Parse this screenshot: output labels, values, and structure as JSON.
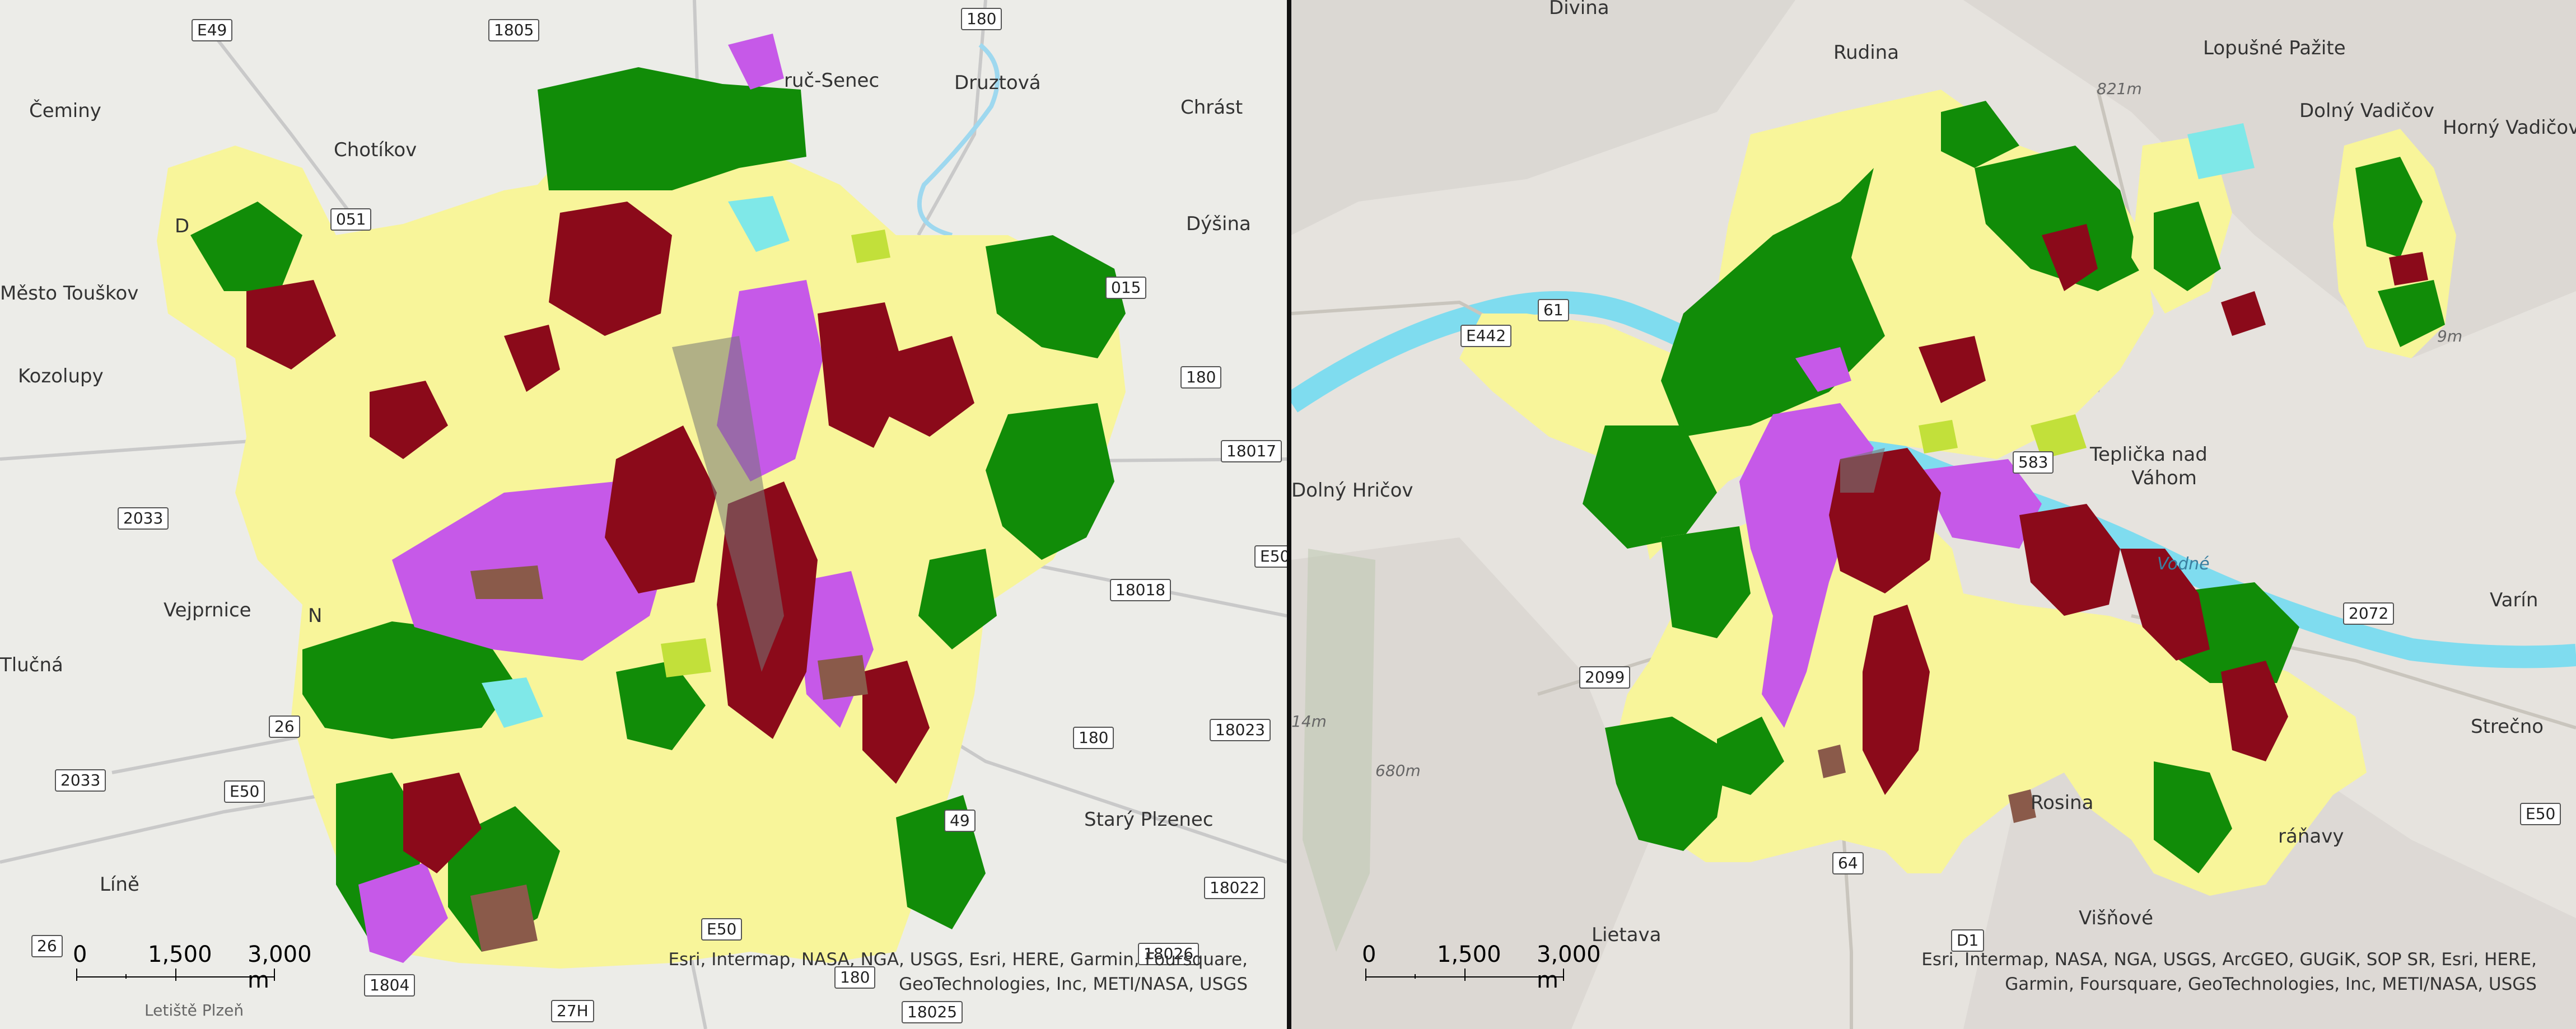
{
  "colors": {
    "residential": "#8b0a1a",
    "industrial": "#c659e8",
    "forest": "#118c08",
    "agriculture": "#f8f59a",
    "urban_green": "#c2e03a",
    "water": "#7fe8e8",
    "other": "#8a5a4a",
    "grey": "#777777",
    "basemap_left": "#ecece8",
    "basemap_right": "#e6e3de"
  },
  "left_map": {
    "places": [
      "Čeminy",
      "Chotíkov",
      "Město Touškov",
      "Kozolupy",
      "Vejprnice",
      "Tlučná",
      "Líně",
      "Druztová",
      "Chrást",
      "Dýšina",
      "Starý Plzenec",
      "Letiště Plzeň",
      "ruč-Senec",
      "D",
      "N"
    ],
    "roads": [
      "E49",
      "1805",
      "180",
      "015",
      "180",
      "18017",
      "E50",
      "18018",
      "2033",
      "26",
      "2033",
      "E50",
      "180",
      "18023",
      "49",
      "18022",
      "1804",
      "E50",
      "180",
      "18025",
      "27H",
      "26",
      "18026",
      "051"
    ],
    "scale": {
      "labels": [
        "0",
        "1,500",
        "3,000 m"
      ]
    },
    "attribution": [
      "Esri, Intermap, NASA, NGA, USGS, Esri, HERE, Garmin, Foursquare,",
      "GeoTechnologies, Inc, METI/NASA, USGS"
    ]
  },
  "right_map": {
    "places": [
      "Divina",
      "Rudina",
      "Lopušné Pažite",
      "Dolný Vadičov",
      "Horný Vadičov",
      "Dolný Hričov",
      "Teplička nad",
      "Váhom",
      "Varín",
      "Strečno",
      "Rosina",
      "Višňové",
      "Lietava",
      "ráňavy"
    ],
    "water_label": "Vodné",
    "peaks": [
      "821m",
      "680m",
      "14m",
      "9m"
    ],
    "roads": [
      "61",
      "E442",
      "583",
      "2072",
      "2099",
      "E50",
      "64",
      "D1"
    ],
    "scale": {
      "labels": [
        "0",
        "1,500",
        "3,000 m"
      ]
    },
    "attribution": [
      "Esri, Intermap, NASA, NGA, USGS, ArcGEO, GUGiK, SOP SR, Esri, HERE,",
      "Garmin, Foursquare, GeoTechnologies, Inc, METI/NASA, USGS"
    ]
  }
}
